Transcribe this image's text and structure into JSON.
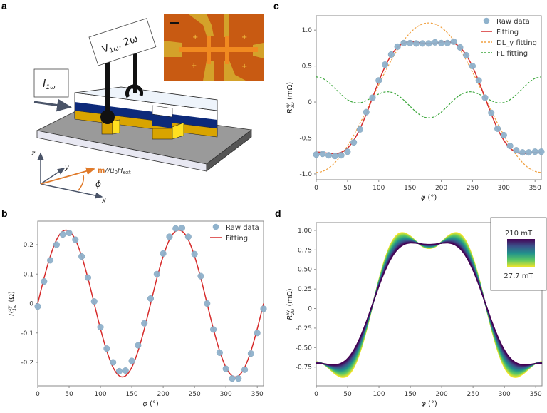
{
  "panels": {
    "a": "a",
    "b": "b",
    "c": "c",
    "d": "d"
  },
  "schematic": {
    "voltage_label": {
      "main": "V",
      "sub1": "1ω",
      "sep": ", 2ω"
    },
    "current_label": {
      "main": "I",
      "sub": "1ω"
    },
    "axis_z": "z",
    "axis_y": "y",
    "axis_x": "x",
    "field_label": {
      "m": "m",
      "rest": "//μ",
      "sub0": "0",
      "H": "H",
      "sub": "ext"
    },
    "angle_label": "ϕ",
    "colors": {
      "cap": "#ffffff",
      "ferromagnet": "#0d2a7a",
      "heavy_metal": "#d9a400",
      "substrate": "#9a9a9a",
      "field_arrow": "#e07a2a",
      "inset_bg": "#c85a12",
      "inset_pads": "#d4a22a"
    }
  },
  "chart_data": [
    {
      "id": "b",
      "type": "line",
      "xlabel": {
        "main": "φ",
        "unit": "(°)"
      },
      "ylabel": {
        "main": "R",
        "sup": "xy",
        "sub": "1ω",
        "unit": "(Ω)"
      },
      "xlim": [
        0,
        360
      ],
      "ylim": [
        -0.28,
        0.28
      ],
      "xticks": [
        {
          "v": 0,
          "t": "0"
        },
        {
          "v": 50,
          "t": "50"
        },
        {
          "v": 100,
          "t": "100"
        },
        {
          "v": 150,
          "t": "150"
        },
        {
          "v": 200,
          "t": "200"
        },
        {
          "v": 250,
          "t": "250"
        },
        {
          "v": 300,
          "t": "300"
        },
        {
          "v": 350,
          "t": "350"
        }
      ],
      "yticks": [
        {
          "v": -0.2,
          "t": "-0.2"
        },
        {
          "v": -0.1,
          "t": "-0.1"
        },
        {
          "v": 0,
          "t": "0"
        },
        {
          "v": 0.1,
          "t": "0.1"
        },
        {
          "v": 0.2,
          "t": "0.2"
        }
      ],
      "legend": "top-right",
      "x": [
        0,
        10,
        20,
        30,
        40,
        50,
        60,
        70,
        80,
        90,
        100,
        110,
        120,
        130,
        140,
        150,
        160,
        170,
        180,
        190,
        200,
        210,
        220,
        230,
        240,
        250,
        260,
        270,
        280,
        290,
        300,
        310,
        320,
        330,
        340,
        350,
        360
      ],
      "series": [
        {
          "name": "Raw data",
          "kind": "scatter",
          "color": "#8fb2cc",
          "values": [
            -0.01,
            0.075,
            0.147,
            0.2,
            0.235,
            0.24,
            0.217,
            0.16,
            0.088,
            0.007,
            -0.08,
            -0.153,
            -0.2,
            -0.23,
            -0.228,
            -0.195,
            -0.142,
            -0.067,
            0.017,
            0.1,
            0.17,
            0.227,
            0.255,
            0.257,
            0.227,
            0.168,
            0.093,
            0.0,
            -0.088,
            -0.167,
            -0.222,
            -0.255,
            -0.255,
            -0.225,
            -0.17,
            -0.1,
            -0.018
          ]
        },
        {
          "name": "Fitting",
          "kind": "line",
          "color": "#d62a2a",
          "values": [
            0,
            0.086,
            0.161,
            0.217,
            0.246,
            0.246,
            0.217,
            0.161,
            0.086,
            0,
            -0.086,
            -0.161,
            -0.217,
            -0.246,
            -0.246,
            -0.217,
            -0.161,
            -0.086,
            0,
            0.086,
            0.161,
            0.217,
            0.246,
            0.246,
            0.217,
            0.161,
            0.086,
            0,
            -0.086,
            -0.161,
            -0.217,
            -0.246,
            -0.246,
            -0.217,
            -0.161,
            -0.086,
            0
          ]
        }
      ]
    },
    {
      "id": "c",
      "type": "line",
      "xlabel": {
        "main": "φ",
        "unit": "(°)"
      },
      "ylabel": {
        "main": "R",
        "sup": "xy",
        "sub": "2ω",
        "unit": "(mΩ)"
      },
      "xlim": [
        0,
        360
      ],
      "ylim": [
        -1.08,
        1.2
      ],
      "xticks": [
        {
          "v": 0,
          "t": "0"
        },
        {
          "v": 50,
          "t": "50"
        },
        {
          "v": 100,
          "t": "100"
        },
        {
          "v": 150,
          "t": "150"
        },
        {
          "v": 200,
          "t": "200"
        },
        {
          "v": 250,
          "t": "250"
        },
        {
          "v": 300,
          "t": "300"
        },
        {
          "v": 350,
          "t": "350"
        }
      ],
      "yticks": [
        {
          "v": -1,
          "t": "-1.0"
        },
        {
          "v": -0.5,
          "t": "-0.5"
        },
        {
          "v": 0,
          "t": "0"
        },
        {
          "v": 0.5,
          "t": "0.5"
        },
        {
          "v": 1,
          "t": "1.0"
        }
      ],
      "legend": "top-right",
      "x": [
        0,
        10,
        20,
        30,
        40,
        50,
        60,
        70,
        80,
        90,
        100,
        110,
        120,
        130,
        140,
        150,
        160,
        170,
        180,
        190,
        200,
        210,
        220,
        230,
        240,
        250,
        260,
        270,
        280,
        290,
        300,
        310,
        320,
        330,
        340,
        350,
        360
      ],
      "series": [
        {
          "name": "Raw data",
          "kind": "scatter",
          "color": "#8fb2cc",
          "values": [
            -0.73,
            -0.72,
            -0.74,
            -0.75,
            -0.74,
            -0.69,
            -0.56,
            -0.38,
            -0.14,
            0.06,
            0.3,
            0.52,
            0.66,
            0.77,
            0.82,
            0.82,
            0.815,
            0.815,
            0.815,
            0.83,
            0.82,
            0.82,
            0.84,
            0.76,
            0.65,
            0.5,
            0.3,
            0.06,
            -0.15,
            -0.37,
            -0.46,
            -0.61,
            -0.67,
            -0.7,
            -0.7,
            -0.69,
            -0.69
          ]
        },
        {
          "name": "Fitting",
          "kind": "line",
          "color": "#d62a2a",
          "values": [
            -0.695,
            -0.7,
            -0.713,
            -0.718,
            -0.699,
            -0.641,
            -0.531,
            -0.371,
            -0.167,
            0.06,
            0.287,
            0.491,
            0.651,
            0.761,
            0.819,
            0.838,
            0.833,
            0.82,
            0.815,
            0.82,
            0.833,
            0.838,
            0.819,
            0.761,
            0.651,
            0.491,
            0.287,
            0.06,
            -0.167,
            -0.371,
            -0.531,
            -0.641,
            -0.699,
            -0.718,
            -0.713,
            -0.7,
            -0.695
          ]
        },
        {
          "name": "DL_y fitting",
          "kind": "dashed",
          "color": "#f0a040",
          "values": [
            -0.98,
            -0.964,
            -0.918,
            -0.841,
            -0.737,
            -0.609,
            -0.46,
            -0.296,
            -0.121,
            0.06,
            0.241,
            0.416,
            0.58,
            0.729,
            0.857,
            0.961,
            1.038,
            1.084,
            1.1,
            1.084,
            1.038,
            0.961,
            0.857,
            0.729,
            0.58,
            0.416,
            0.241,
            0.06,
            -0.121,
            -0.296,
            -0.46,
            -0.609,
            -0.737,
            -0.841,
            -0.918,
            -0.964,
            -0.98
          ]
        },
        {
          "name": "FL fitting",
          "kind": "dashed",
          "color": "#3aa63a",
          "values": [
            0.35,
            0.329,
            0.27,
            0.188,
            0.103,
            0.033,
            -0.006,
            -0.01,
            0.019,
            0.065,
            0.111,
            0.14,
            0.136,
            0.097,
            0.027,
            -0.058,
            -0.14,
            -0.199,
            -0.22,
            -0.199,
            -0.14,
            -0.058,
            0.027,
            0.097,
            0.136,
            0.14,
            0.111,
            0.065,
            0.019,
            -0.01,
            -0.006,
            0.033,
            0.103,
            0.188,
            0.27,
            0.329,
            0.35
          ]
        }
      ]
    },
    {
      "id": "d",
      "type": "line",
      "xlabel": {
        "main": "φ",
        "unit": "(°)"
      },
      "ylabel": {
        "main": "R",
        "sup": "xy",
        "sub": "2ω",
        "unit": "(mΩ)"
      },
      "xlim": [
        0,
        360
      ],
      "ylim": [
        -0.99,
        1.1
      ],
      "xticks": [
        {
          "v": 0,
          "t": "0"
        },
        {
          "v": 50,
          "t": "50"
        },
        {
          "v": 100,
          "t": "100"
        },
        {
          "v": 150,
          "t": "150"
        },
        {
          "v": 200,
          "t": "200"
        },
        {
          "v": 250,
          "t": "250"
        },
        {
          "v": 300,
          "t": "300"
        },
        {
          "v": 350,
          "t": "350"
        }
      ],
      "yticks": [
        {
          "v": -0.75,
          "t": "-0.75"
        },
        {
          "v": -0.5,
          "t": "-0.50"
        },
        {
          "v": -0.25,
          "t": "-0.25"
        },
        {
          "v": 0,
          "t": "0"
        },
        {
          "v": 0.25,
          "t": "0.25"
        },
        {
          "v": 0.5,
          "t": "0.50"
        },
        {
          "v": 0.75,
          "t": "0.75"
        },
        {
          "v": 1,
          "t": "1.00"
        }
      ],
      "colorbar": {
        "top_label": "210 mT",
        "bottom_label": "27.7 mT",
        "colormap": [
          "#440154",
          "#3b528b",
          "#21918c",
          "#5ec962",
          "#fde725"
        ]
      },
      "legend": "top-right",
      "x": [
        0,
        10,
        20,
        30,
        40,
        50,
        60,
        70,
        80,
        90,
        100,
        110,
        120,
        130,
        140,
        150,
        160,
        170,
        180,
        190,
        200,
        210,
        220,
        230,
        240,
        250,
        260,
        270,
        280,
        290,
        300,
        310,
        320,
        330,
        340,
        350,
        360
      ],
      "series": [
        {
          "field": "27.7 mT",
          "kind": "family-end",
          "color": "#fde725",
          "values": [
            -0.68,
            -0.703,
            -0.765,
            -0.836,
            -0.879,
            -0.861,
            -0.755,
            -0.555,
            -0.278,
            0.045,
            0.368,
            0.645,
            0.845,
            0.951,
            0.969,
            0.926,
            0.855,
            0.793,
            0.77,
            0.793,
            0.855,
            0.926,
            0.969,
            0.951,
            0.845,
            0.645,
            0.368,
            0.045,
            -0.278,
            -0.555,
            -0.755,
            -0.861,
            -0.879,
            -0.836,
            -0.765,
            -0.703,
            -0.68
          ]
        },
        {
          "field": "210 mT",
          "kind": "family-end",
          "color": "#440154",
          "values": [
            -0.7,
            -0.705,
            -0.716,
            -0.72,
            -0.7,
            -0.64,
            -0.53,
            -0.369,
            -0.167,
            0.06,
            0.287,
            0.489,
            0.65,
            0.76,
            0.82,
            0.84,
            0.836,
            0.825,
            0.82,
            0.825,
            0.836,
            0.84,
            0.82,
            0.76,
            0.65,
            0.489,
            0.287,
            0.06,
            -0.167,
            -0.369,
            -0.53,
            -0.64,
            -0.7,
            -0.72,
            -0.716,
            -0.705,
            -0.7
          ]
        }
      ]
    }
  ]
}
